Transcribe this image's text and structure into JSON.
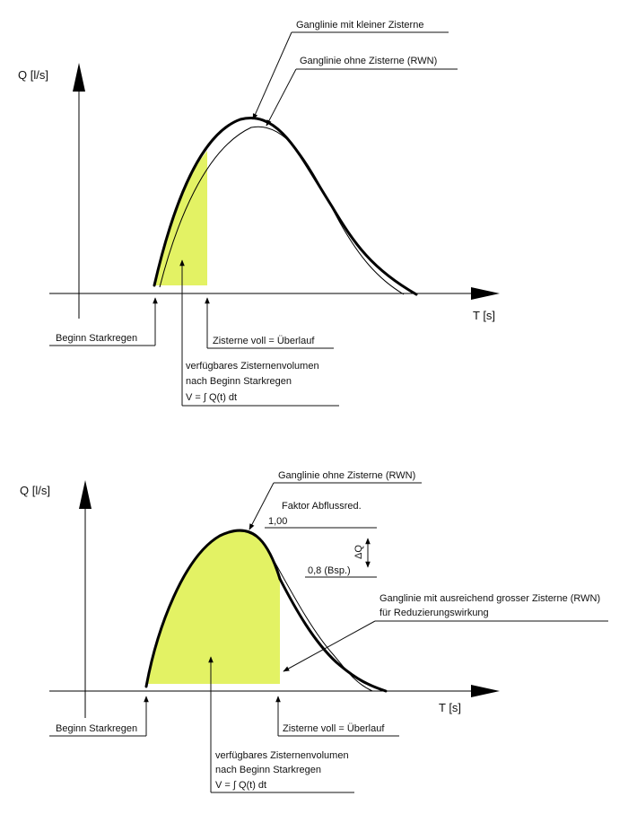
{
  "colors": {
    "fill": "#e3f264",
    "line": "#000000"
  },
  "top": {
    "y_axis_label": "Q [l/s]",
    "x_axis_label": "T [s]",
    "label_small_cistern": "Ganglinie mit kleiner Zisterne",
    "label_rwn": "Ganglinie ohne Zisterne (RWN)",
    "label_start": "Beginn Starkregen",
    "label_full": "Zisterne voll = Überlauf",
    "volume_line1": "verfügbares Zisternenvolumen",
    "volume_line2": "nach Beginn Starkregen",
    "volume_formula": "V = ∫ Q(t) dt"
  },
  "bottom": {
    "y_axis_label": "Q [l/s]",
    "x_axis_label": "T [s]",
    "label_rwn": "Ganglinie ohne Zisterne (RWN)",
    "label_faktor": "Faktor Abflussred.",
    "value_100": "1,00",
    "value_08": "0,8 (Bsp.)",
    "delta_q": "ΔQ",
    "label_large_line1": "Ganglinie mit ausreichend grosser Zisterne (RWN)",
    "label_large_line2": "für Reduzierungswirkung",
    "label_start": "Beginn Starkregen",
    "label_full": "Zisterne voll = Überlauf",
    "volume_line1": "verfügbares Zisternenvolumen",
    "volume_line2": "nach Beginn Starkregen",
    "volume_formula": "V = ∫ Q(t) dt"
  }
}
